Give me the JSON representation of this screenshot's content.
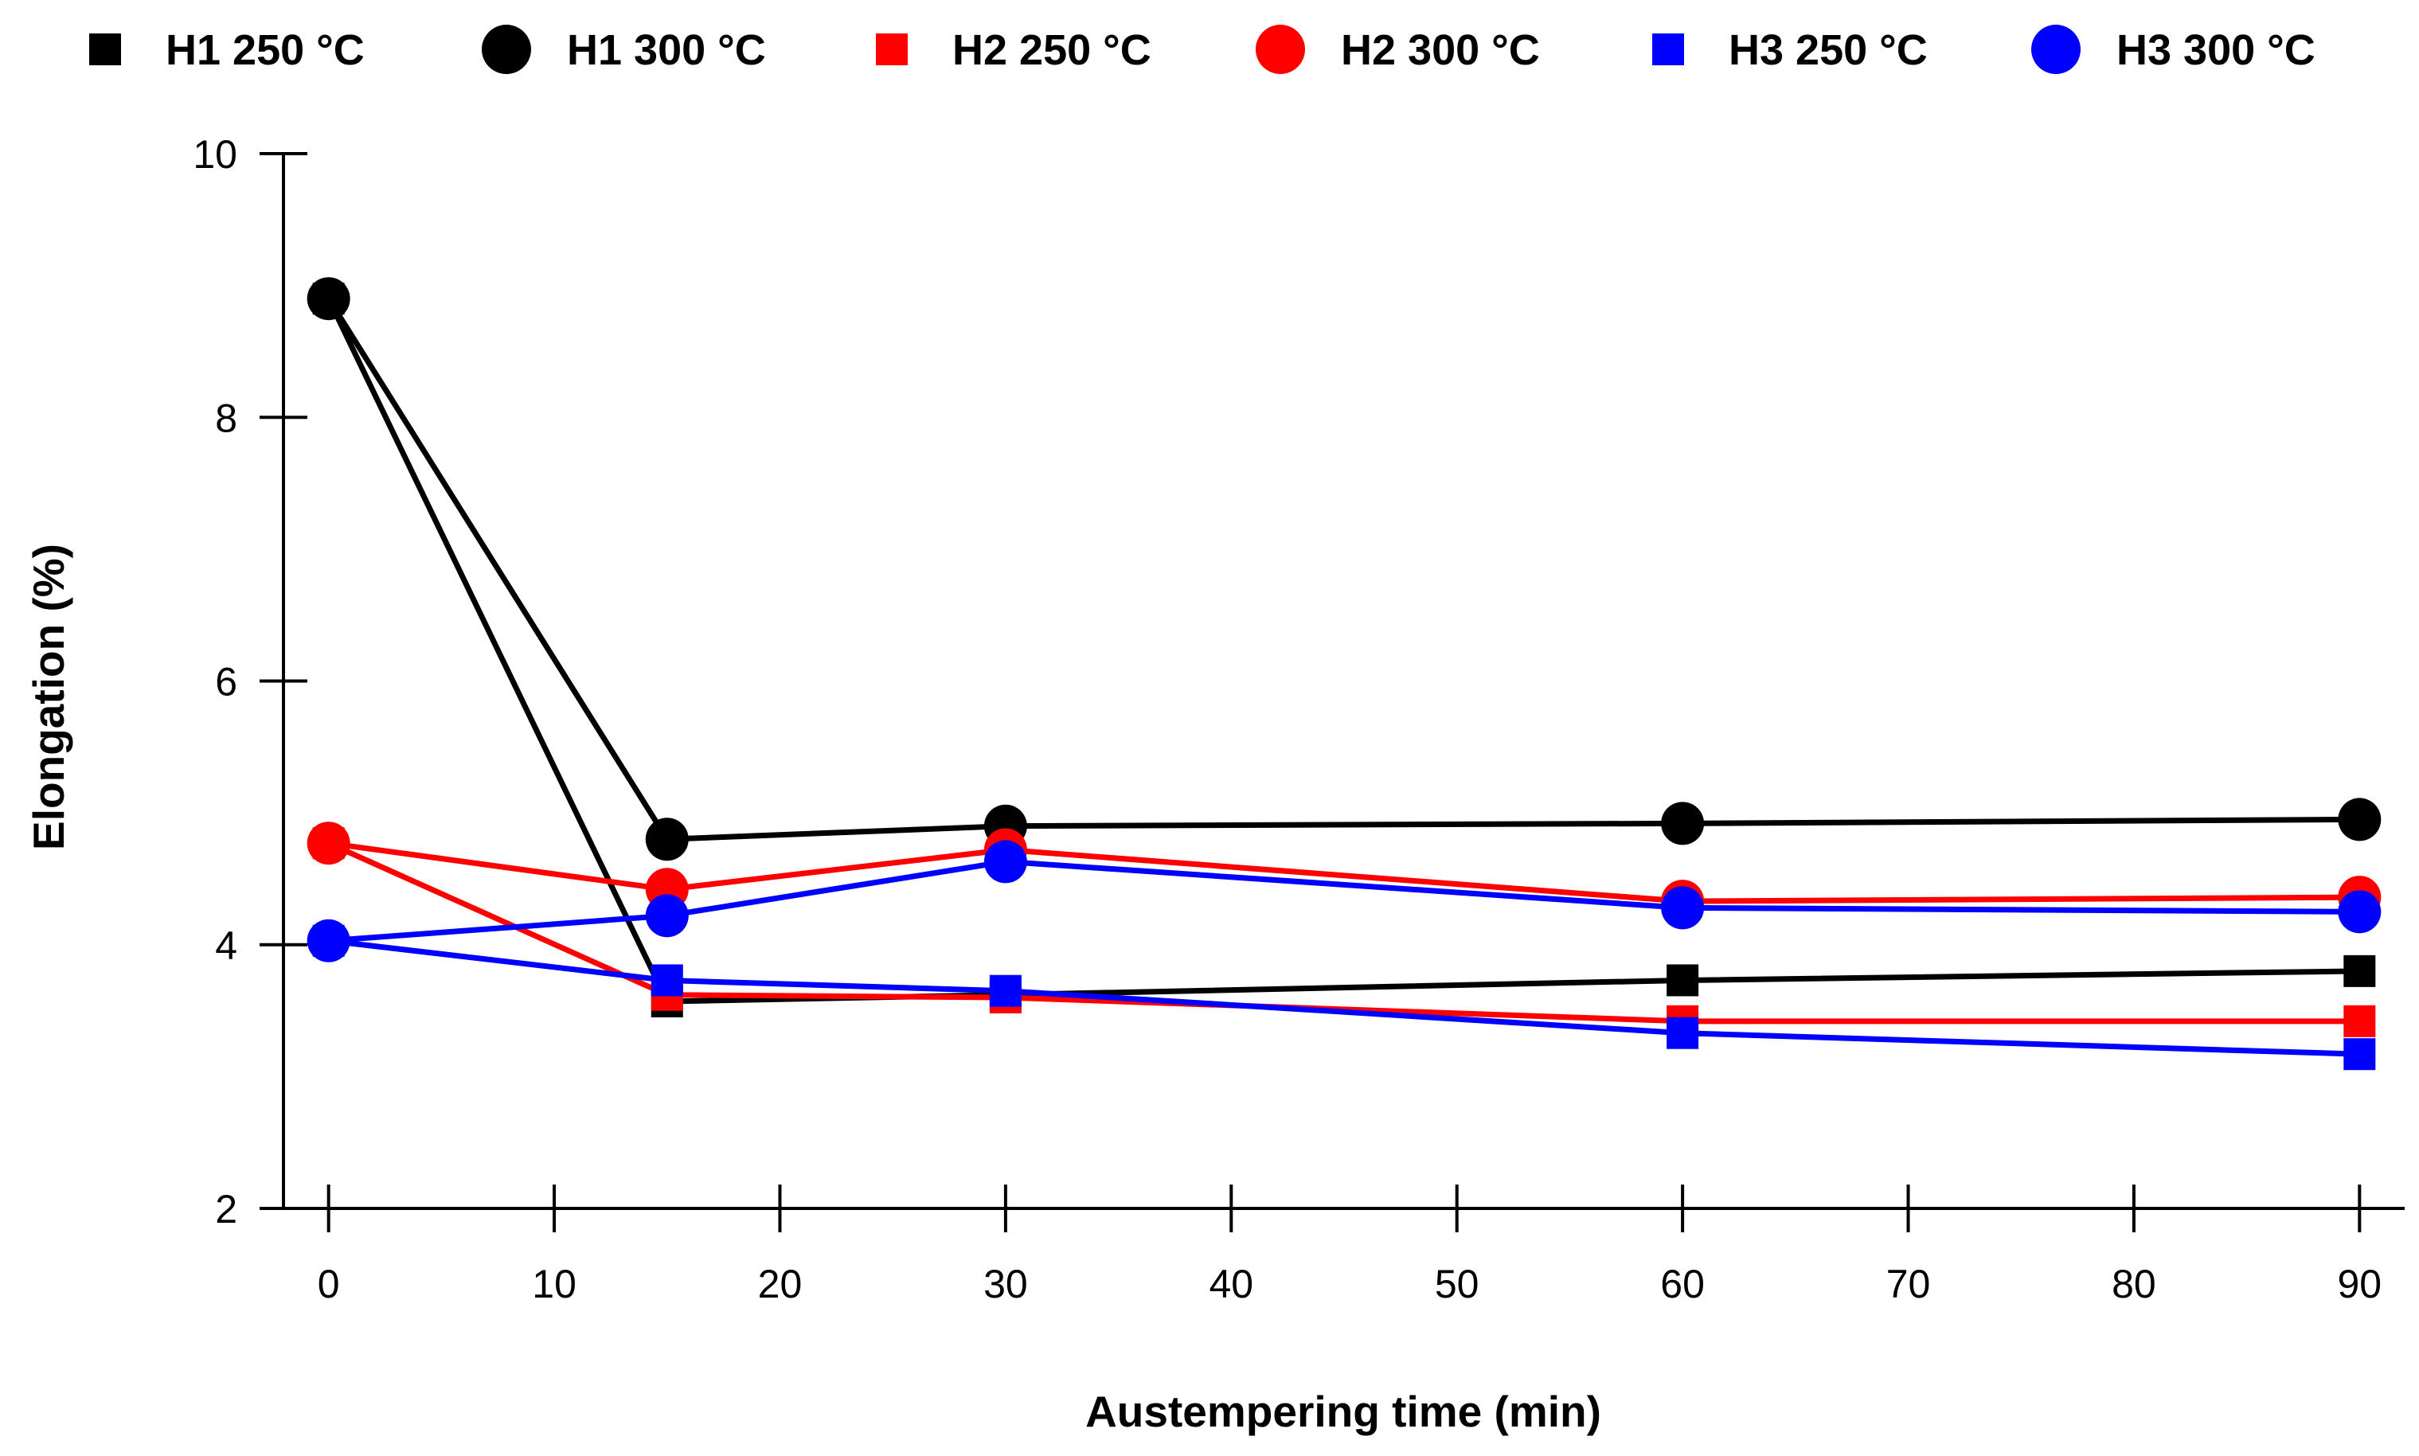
{
  "chart_data": {
    "type": "line",
    "title": "",
    "xlabel": "Austempering time (min)",
    "ylabel": "Elongation (%)",
    "xlim": [
      -2,
      92
    ],
    "ylim": [
      2,
      10
    ],
    "xticks": [
      0,
      10,
      20,
      30,
      40,
      50,
      60,
      70,
      80,
      90
    ],
    "yticks": [
      2,
      4,
      6,
      8,
      10
    ],
    "grid": false,
    "legend_position": "top",
    "x": [
      0,
      15,
      30,
      60,
      90
    ],
    "series": [
      {
        "name": "H1 250 °C",
        "marker": "square",
        "color": "#000000",
        "values": [
          8.9,
          3.57,
          3.62,
          3.73,
          3.8
        ]
      },
      {
        "name": "H1 300 °C",
        "marker": "circle",
        "color": "#000000",
        "values": [
          8.9,
          4.8,
          4.9,
          4.92,
          4.95
        ]
      },
      {
        "name": "H2 250 °C",
        "marker": "square",
        "color": "#ff0000",
        "values": [
          4.77,
          3.62,
          3.6,
          3.42,
          3.42
        ]
      },
      {
        "name": "H2 300 °C",
        "marker": "circle",
        "color": "#ff0000",
        "values": [
          4.77,
          4.42,
          4.72,
          4.33,
          4.36
        ]
      },
      {
        "name": "H3 250 °C",
        "marker": "square",
        "color": "#0000ff",
        "values": [
          4.03,
          3.73,
          3.65,
          3.33,
          3.17
        ]
      },
      {
        "name": "H3 300 °C",
        "marker": "circle",
        "color": "#0000ff",
        "values": [
          4.03,
          4.22,
          4.63,
          4.28,
          4.25
        ]
      }
    ]
  }
}
